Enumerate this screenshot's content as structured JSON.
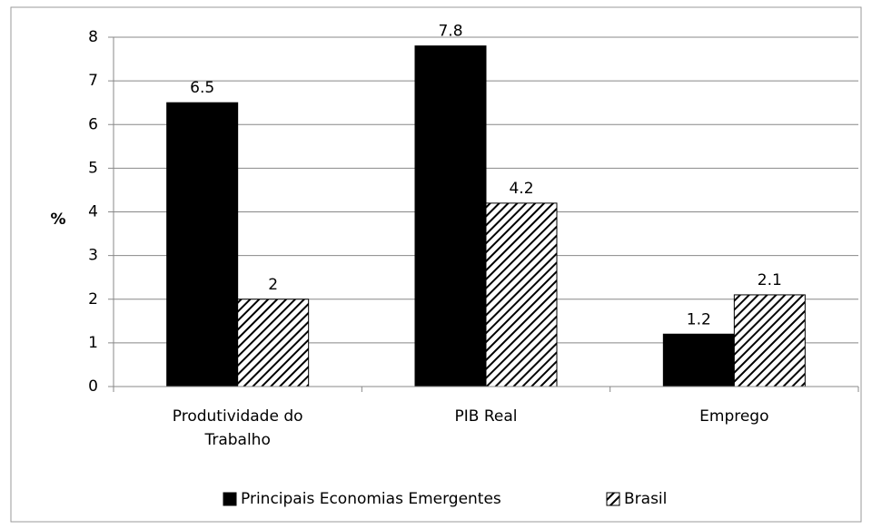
{
  "chart_data": {
    "type": "bar",
    "ylabel": "%",
    "categories": [
      "Produtividade do Trabalho",
      "PIB Real",
      "Emprego"
    ],
    "series": [
      {
        "name": "Principais Economias Emergentes",
        "color": "#000000",
        "values": [
          6.5,
          7.8,
          1.2
        ]
      },
      {
        "name": "Brasil",
        "color": "#000000",
        "hatch": true,
        "values": [
          2,
          4.2,
          2.1
        ]
      }
    ],
    "ylim": [
      0,
      8
    ],
    "yticks": [
      0,
      1,
      2,
      3,
      4,
      5,
      6,
      7,
      8
    ],
    "grid": true,
    "legend": "bottom"
  }
}
